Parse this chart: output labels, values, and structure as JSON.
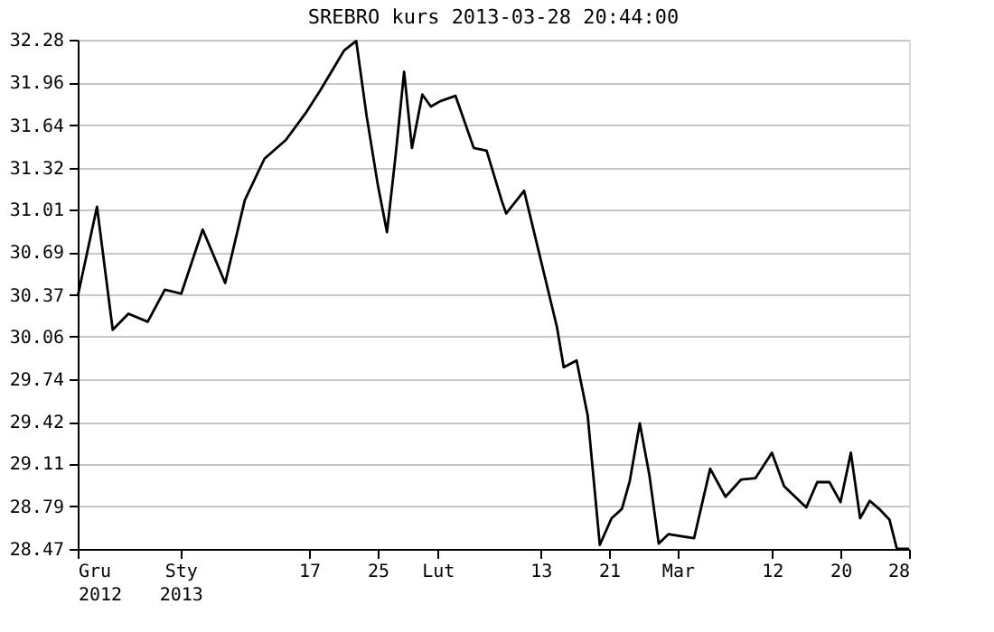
{
  "chart_data": {
    "type": "line",
    "title": "SREBRO kurs  2013-03-28 20:44:00",
    "x": [
      "2012-12-21T00:00",
      "2012-12-23T06:00",
      "2012-12-25T02:00",
      "2012-12-26T22:00",
      "2012-12-29T04:00",
      "2012-12-31T04:00",
      "2013-01-02T02:00",
      "2013-01-04T14:00",
      "2013-01-07T05:00",
      "2013-01-09T12:00",
      "2013-01-11T19:00",
      "2013-01-14T07:00",
      "2013-01-16T14:00",
      "2013-01-18T07:00",
      "2013-01-19T19:00",
      "2013-01-21T02:00",
      "2013-01-22T12:00",
      "2013-01-23T17:00",
      "2013-01-25T00:00",
      "2013-01-26T02:00",
      "2013-01-27T02:00",
      "2013-01-28T02:00",
      "2013-01-29T00:00",
      "2013-01-30T05:00",
      "2013-01-31T05:00",
      "2013-02-01T07:00",
      "2013-02-03T02:00",
      "2013-02-05T05:00",
      "2013-02-06T17:00",
      "2013-02-08T12:00",
      "2013-02-09T00:00",
      "2013-02-11T02:00",
      "2013-02-14T22:00",
      "2013-02-15T17:00",
      "2013-02-17T05:00",
      "2013-02-18T12:00",
      "2013-02-19T22:00",
      "2013-02-21T07:00",
      "2013-02-22T12:00",
      "2013-02-23T10:00",
      "2013-02-24T14:00",
      "2013-02-25T17:00",
      "2013-02-26T19:00",
      "2013-02-27T22:00",
      "2013-03-02T22:00",
      "2013-03-04T19:00",
      "2013-03-06T14:00",
      "2013-03-08T10:00",
      "2013-03-10T02:00",
      "2013-03-12T00:00",
      "2013-03-13T10:00",
      "2013-03-16T00:00",
      "2013-03-17T07:00",
      "2013-03-18T17:00",
      "2013-03-20T00:00",
      "2013-03-21T05:00",
      "2013-03-22T07:00",
      "2013-03-23T10:00",
      "2013-03-24T12:00",
      "2013-03-25T17:00",
      "2013-03-26T14:00",
      "2013-03-28T00:00"
    ],
    "series": [
      {
        "color": "#000000",
        "values": [
          30.36,
          31.03,
          30.11,
          30.23,
          30.17,
          30.41,
          30.38,
          30.86,
          30.46,
          31.08,
          31.39,
          31.53,
          31.73,
          31.9,
          32.06,
          32.2,
          32.27,
          31.71,
          31.2,
          30.84,
          31.41,
          32.04,
          31.47,
          31.87,
          31.78,
          31.82,
          31.86,
          31.47,
          31.45,
          31.07,
          30.98,
          31.15,
          30.13,
          29.83,
          29.88,
          29.47,
          28.5,
          28.7,
          28.77,
          28.98,
          29.41,
          29.02,
          28.51,
          28.58,
          28.55,
          29.07,
          28.86,
          28.99,
          29.0,
          29.19,
          28.94,
          28.78,
          28.97,
          28.97,
          28.82,
          29.19,
          28.7,
          28.83,
          28.77,
          28.69,
          28.47,
          28.47
        ]
      }
    ],
    "xlim": [
      "2012-12-21",
      "2013-03-28"
    ],
    "xticks": [
      {
        "value": "2012-12-21",
        "label": "Gru\n2012"
      },
      {
        "value": "2013-01-02",
        "label": "Sty\n2013"
      },
      {
        "value": "2013-01-17",
        "label": "17"
      },
      {
        "value": "2013-01-25",
        "label": "25"
      },
      {
        "value": "2013-02-01",
        "label": "Lut"
      },
      {
        "value": "2013-02-13",
        "label": "13"
      },
      {
        "value": "2013-02-21",
        "label": "21"
      },
      {
        "value": "2013-03-01",
        "label": "Mar"
      },
      {
        "value": "2013-03-12",
        "label": "12"
      },
      {
        "value": "2013-03-20",
        "label": "20"
      },
      {
        "value": "2013-03-28",
        "label": "28"
      }
    ],
    "ylim": [
      28.47,
      32.28
    ],
    "yticks": [
      28.47,
      28.79,
      29.11,
      29.42,
      29.74,
      30.06,
      30.37,
      30.69,
      31.01,
      31.32,
      31.64,
      31.96,
      32.28
    ],
    "grid": "y",
    "marker": "none",
    "line_style": "solid"
  }
}
